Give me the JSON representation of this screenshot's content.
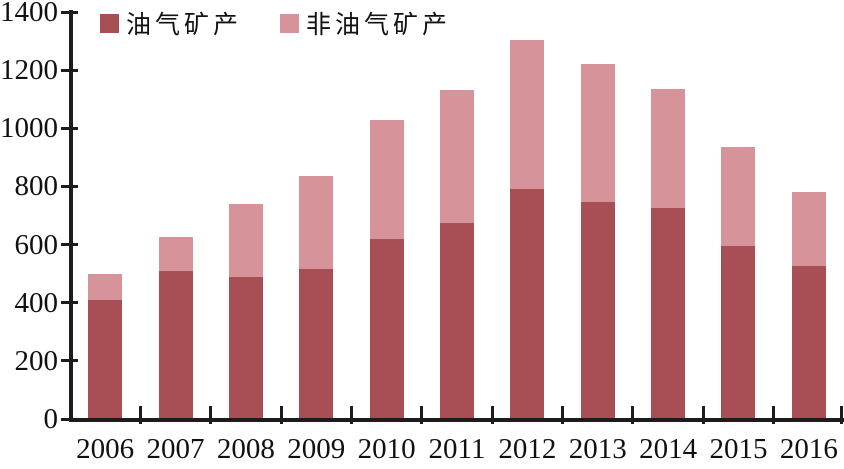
{
  "chart_data": {
    "type": "bar",
    "stacked": true,
    "title": "",
    "xlabel": "",
    "ylabel": "",
    "categories": [
      "2006",
      "2007",
      "2008",
      "2009",
      "2010",
      "2011",
      "2012",
      "2013",
      "2014",
      "2015",
      "2016"
    ],
    "series": [
      {
        "name": "油气矿产",
        "color": "#a84e55",
        "values": [
          410,
          510,
          490,
          515,
          620,
          675,
          790,
          745,
          725,
          595,
          525
        ]
      },
      {
        "name": "非油气矿产",
        "color": "#d6939a",
        "values": [
          90,
          115,
          250,
          320,
          410,
          455,
          515,
          475,
          410,
          340,
          255
        ]
      }
    ],
    "totals": [
      500,
      625,
      740,
      835,
      1030,
      1130,
      1305,
      1220,
      1135,
      935,
      780
    ],
    "ylim": [
      0,
      1400
    ],
    "ytick_step": 200,
    "yticks": [
      "0",
      "200",
      "400",
      "600",
      "800",
      "1000",
      "1200",
      "1400"
    ],
    "grid": false,
    "legend_position": "top-left",
    "axis_color": "#1c1c1c",
    "background_color": "#ffffff"
  }
}
